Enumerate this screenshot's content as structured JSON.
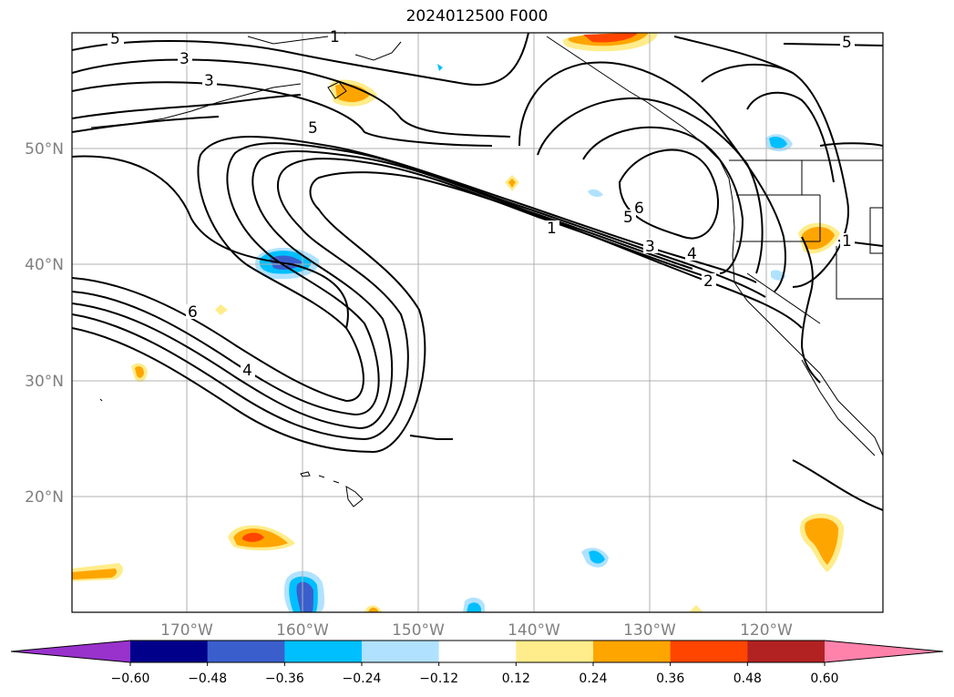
{
  "title": "2024012500 F000",
  "map": {
    "lat_labels": [
      "50°N",
      "40°N",
      "30°N",
      "20°N"
    ],
    "lon_labels": [
      "170°W",
      "160°W",
      "150°W",
      "140°W",
      "130°W",
      "120°W"
    ],
    "contour_labels": [
      "5",
      "3",
      "3",
      "1",
      "5",
      "6",
      "5",
      "1",
      "3",
      "4",
      "2",
      "6",
      "4",
      "5",
      "1"
    ]
  },
  "colorbar": {
    "ticks": [
      "−0.60",
      "−0.48",
      "−0.36",
      "−0.24",
      "−0.12",
      "0.12",
      "0.24",
      "0.36",
      "0.48",
      "0.60"
    ],
    "colors": [
      "#9932cc",
      "#00008b",
      "#3a5fcd",
      "#00bfff",
      "#b0e2ff",
      "#ffffff",
      "#ffec8b",
      "#ffa500",
      "#ff4500",
      "#b22222",
      "#ff82ab"
    ]
  }
}
